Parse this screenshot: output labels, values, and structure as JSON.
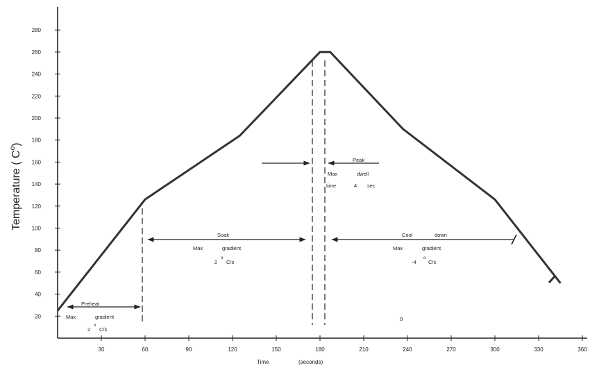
{
  "chart_data": {
    "type": "line",
    "title": "",
    "xlabel": "Time (seconds)",
    "ylabel": "Temperature ( C°)",
    "xlim": [
      0,
      370
    ],
    "ylim": [
      0,
      295
    ],
    "x_ticks": [
      30,
      60,
      90,
      120,
      150,
      180,
      210,
      240,
      270,
      300,
      330,
      360
    ],
    "y_ticks": [
      20,
      40,
      60,
      80,
      100,
      120,
      140,
      160,
      180,
      200,
      220,
      240,
      260,
      280
    ],
    "grid": false,
    "legend": "none",
    "line_color": "#333333",
    "series": [
      {
        "x": [
          0,
          60,
          125,
          180,
          187,
          237,
          300,
          345
        ],
        "y": [
          25,
          126,
          184,
          260,
          260,
          190,
          126,
          50
        ]
      }
    ],
    "text": {
      "time_word": "Time",
      "seconds_word": "(seconds)",
      "y_title_main": "Temperature ( C",
      "y_title_deg": "o",
      "y_title_close": ")",
      "stray_mark": "0"
    },
    "annotations": {
      "preheat": {
        "name": "Preheat",
        "line1a": "Max",
        "line1b": "gradient",
        "line2a": "2",
        "deg": "o",
        "line2b": "C/s"
      },
      "soak": {
        "name": "Soak",
        "line1a": "Max",
        "line1b": "gradient",
        "line2a": "2",
        "deg": "o",
        "line2b": "C/s"
      },
      "peak": {
        "name": "Peak",
        "line1a": "Max",
        "line1b": "dwell",
        "line2a": "time",
        "line2b": "4",
        "line2c": "sec"
      },
      "cool": {
        "name_a": "Cool",
        "name_b": "down",
        "line1a": "Max",
        "line1b": "gradient",
        "line2a": "-4",
        "deg": "o",
        "line2b": "C/s"
      }
    }
  }
}
